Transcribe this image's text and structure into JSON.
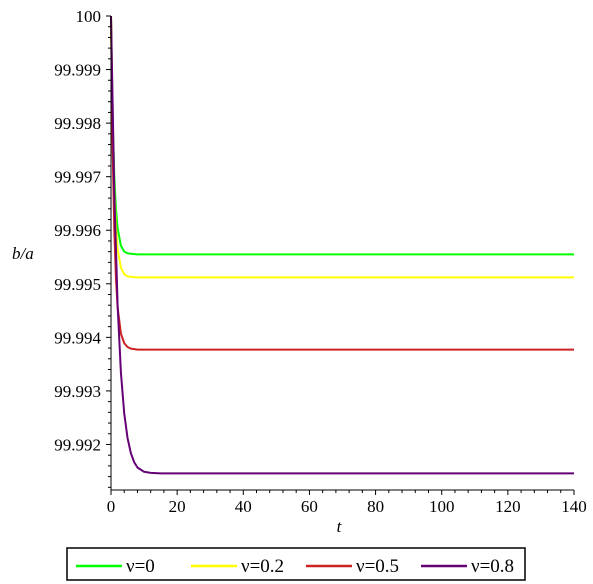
{
  "chart_data": {
    "type": "line",
    "xlabel": "t",
    "ylabel": "b/a",
    "xlim": [
      0,
      140
    ],
    "ylim": [
      99.99115,
      100
    ],
    "x_ticks": [
      "0",
      "20",
      "40",
      "60",
      "80",
      "100",
      "120",
      "140"
    ],
    "y_ticks": [
      "99.992",
      "99.993",
      "99.994",
      "99.995",
      "99.996",
      "99.997",
      "99.998",
      "99.999",
      "100"
    ],
    "legend_position": "bottom",
    "grid": false,
    "series": [
      {
        "name": "ν=0",
        "color": "#00ff00",
        "x": [
          0,
          0.5,
          1,
          1.5,
          2,
          3,
          4,
          5,
          6,
          8,
          10,
          15,
          140
        ],
        "y": [
          100,
          99.9981,
          99.99702,
          99.9964,
          99.99604,
          99.99571,
          99.9956,
          99.99557,
          99.99556,
          99.99555,
          99.99555,
          99.99555,
          99.99555
        ]
      },
      {
        "name": "ν=0.2",
        "color": "#ffff00",
        "x": [
          0,
          0.5,
          1,
          1.5,
          2,
          3,
          4,
          5,
          6,
          8,
          10,
          15,
          140
        ],
        "y": [
          100,
          99.99792,
          99.99672,
          99.99604,
          99.99565,
          99.9953,
          99.99518,
          99.99514,
          99.99513,
          99.99512,
          99.99512,
          99.99512,
          99.99512
        ]
      },
      {
        "name": "ν=0.5",
        "color": "#cc2222",
        "x": [
          0,
          0.5,
          1,
          1.5,
          2,
          3,
          4,
          5,
          6,
          8,
          10,
          15,
          140
        ],
        "y": [
          100,
          99.9975,
          99.996,
          99.9951,
          99.99456,
          99.99407,
          99.99389,
          99.99382,
          99.99379,
          99.99377,
          99.99377,
          99.99377,
          99.99377
        ]
      },
      {
        "name": "ν=0.8",
        "color": "#660077",
        "x": [
          0,
          1,
          2,
          3,
          4,
          5,
          6,
          7,
          8,
          10,
          12,
          15,
          20,
          140
        ],
        "y": [
          100,
          99.9967,
          99.9946,
          99.99334,
          99.99258,
          99.99212,
          99.99184,
          99.99167,
          99.99157,
          99.99149,
          99.99147,
          99.99146,
          99.99146,
          99.99146
        ]
      }
    ]
  }
}
